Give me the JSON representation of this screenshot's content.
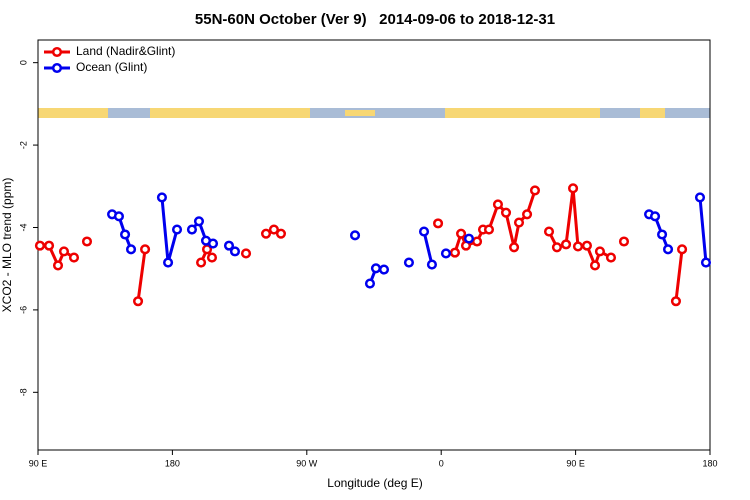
{
  "chart_data": {
    "type": "line",
    "title": "55N-60N October (Ver 9)   2014-09-06 to 2018-12-31",
    "x_label": "Longitude (deg E)",
    "y_label": "XCO2 - MLO trend (ppm)",
    "xlim": [
      -270,
      180
    ],
    "xticks": [
      {
        "value": -270,
        "label": "90 E"
      },
      {
        "value": -180,
        "label": "180"
      },
      {
        "value": -90,
        "label": "90 W"
      },
      0,
      {
        "value": 90,
        "label": "90 E"
      },
      {
        "value": 180,
        "label": "180"
      }
    ],
    "ylim": [
      -9.4,
      0.55
    ],
    "yticks": [
      -8,
      -6,
      -4,
      -2,
      0
    ],
    "legend": "top-left",
    "series": [
      {
        "name": "Land (Nadir&Glint)",
        "color": "#ee0000",
        "x": [
          -268.7,
          -262.6,
          -256.6,
          -252.6,
          -245.9,
          null,
          -237.2,
          null,
          -203.0,
          -198.3,
          null,
          -160.8,
          -156.8,
          -153.5,
          null,
          -130.7,
          null,
          -117.3,
          -112.0,
          -107.3,
          null,
          -2.1,
          null,
          9.2,
          13.3,
          16.6,
          24.0,
          28.0,
          32.0,
          38.0,
          43.4,
          48.8,
          52.1,
          57.5,
          62.8,
          null,
          72.2,
          77.5,
          83.6,
          88.3,
          91.6,
          97.6,
          103.0,
          106.3,
          113.7,
          null,
          122.4,
          null,
          157.2,
          161.3
        ],
        "values": [
          -4.44,
          -4.44,
          -4.92,
          -4.58,
          -4.73,
          null,
          -4.34,
          null,
          -5.79,
          -4.53,
          null,
          -4.85,
          -4.53,
          -4.73,
          null,
          -4.63,
          null,
          -4.15,
          -4.05,
          -4.15,
          null,
          -3.9,
          null,
          -4.61,
          -4.15,
          -4.44,
          -4.34,
          -4.05,
          -4.05,
          -3.44,
          -3.64,
          -4.48,
          -3.88,
          -3.68,
          -3.1,
          null,
          -4.1,
          -4.48,
          -4.41,
          -3.05,
          -4.46,
          -4.44,
          -4.92,
          -4.58,
          -4.73,
          null,
          -4.34,
          null,
          -5.79,
          -4.53
        ]
      },
      {
        "name": "Ocean (Glint)",
        "color": "#0000ee",
        "x": [
          -220.4,
          -215.8,
          -211.7,
          -207.7,
          null,
          -187.0,
          -182.9,
          -176.9,
          null,
          -166.9,
          -162.2,
          -157.5,
          -152.8,
          null,
          -142.1,
          -138.1,
          null,
          -57.7,
          null,
          -47.7,
          -43.7,
          -38.3,
          null,
          -21.6,
          null,
          -11.5,
          -6.2,
          null,
          3.2,
          null,
          18.6,
          null,
          139.2,
          143.2,
          147.9,
          151.9,
          null,
          173.3,
          177.3
        ],
        "values": [
          -3.68,
          -3.73,
          -4.17,
          -4.53,
          null,
          -3.27,
          -4.85,
          -4.05,
          null,
          -4.05,
          -3.85,
          -4.32,
          -4.39,
          null,
          -4.44,
          -4.58,
          null,
          -4.19,
          null,
          -5.36,
          -4.99,
          -5.02,
          null,
          -4.85,
          null,
          -4.1,
          -4.9,
          null,
          -4.63,
          null,
          -4.27,
          null,
          -3.68,
          -3.73,
          -4.17,
          -4.53,
          null,
          -3.27,
          -4.85
        ]
      }
    ]
  }
}
